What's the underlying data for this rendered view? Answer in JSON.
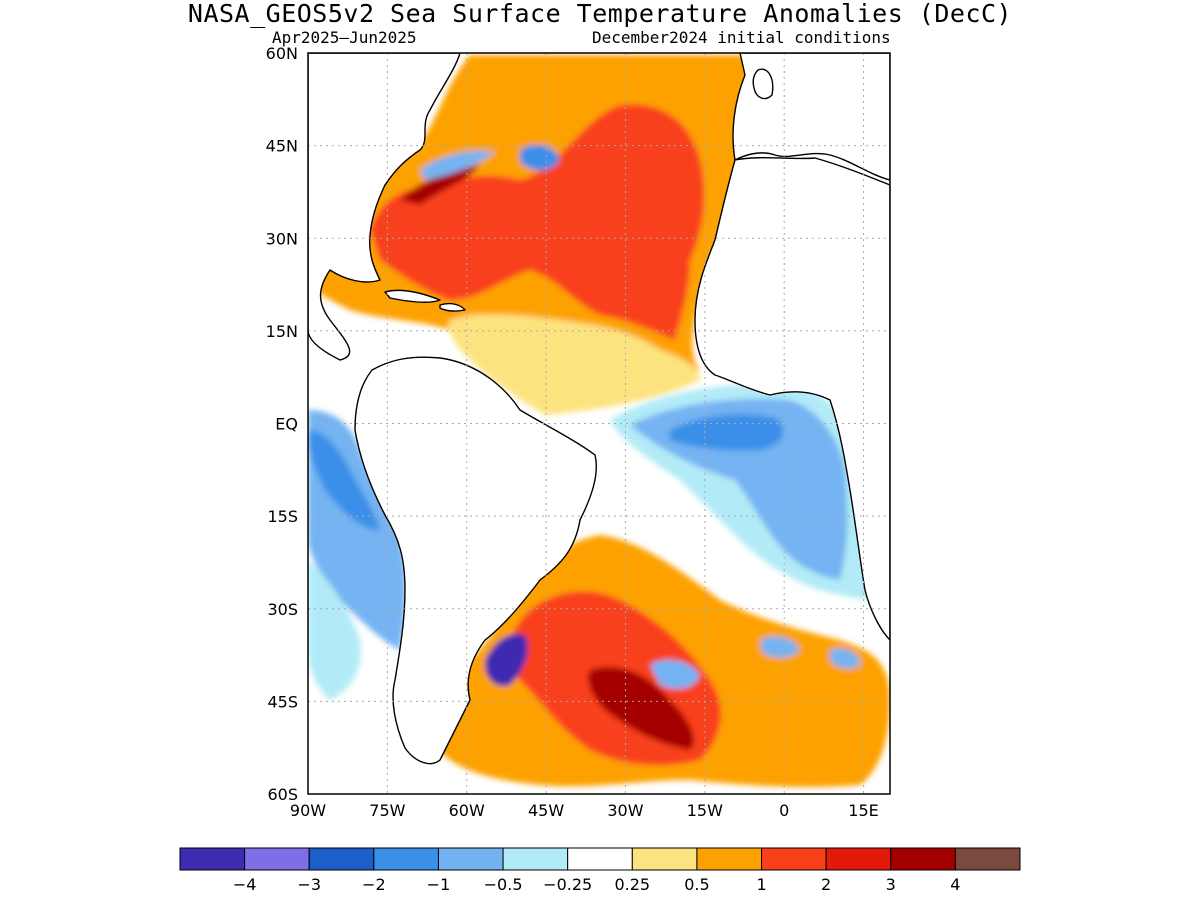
{
  "title": "NASA_GEOS5v2 Sea Surface Temperature Anomalies (DecC)",
  "subtitle_left": "Apr2025–Jun2025",
  "subtitle_right": "December2024 initial conditions",
  "map": {
    "lon_range": [
      -90,
      20
    ],
    "lat_range": [
      -60,
      60
    ],
    "lat_labels": [
      "60N",
      "45N",
      "30N",
      "15N",
      "EQ",
      "15S",
      "30S",
      "45S",
      "60S"
    ],
    "lon_labels": [
      "90W",
      "75W",
      "60W",
      "45W",
      "30W",
      "15W",
      "0",
      "15E"
    ],
    "grid": true
  },
  "colorbar": {
    "colors": [
      "#3d2bb0",
      "#7f6fe6",
      "#1d5fc9",
      "#3b8fe8",
      "#74b3f2",
      "#b2ebf7",
      "#ffffff",
      "#fde37f",
      "#fda100",
      "#f9401b",
      "#e31a0b",
      "#a50000",
      "#7b4a3e"
    ],
    "labels": [
      "−4",
      "−3",
      "−2",
      "−1",
      "−0.5",
      "−0.25",
      "0.25",
      "0.5",
      "1",
      "2",
      "3",
      "4"
    ]
  }
}
